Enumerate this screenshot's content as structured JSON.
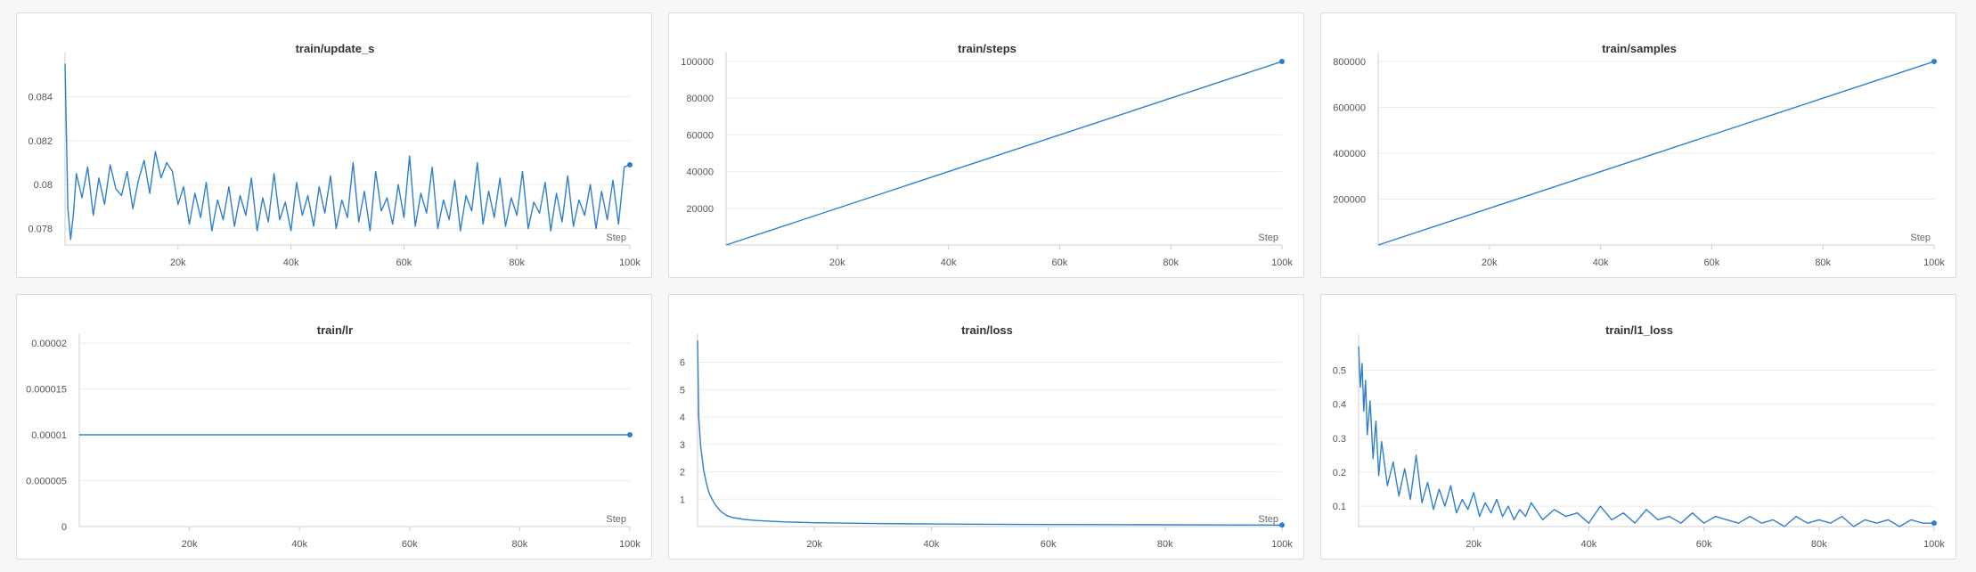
{
  "colors": {
    "line": "#2f7fcb",
    "grid": "#ebebeb",
    "axis": "#cfcfcf",
    "panel_bg": "#ffffff",
    "page_bg": "#f7f7f7"
  },
  "chart_data": [
    {
      "id": "update_s",
      "type": "line",
      "title": "train/update_s",
      "xlabel": "Step",
      "xlim": [
        0,
        100000
      ],
      "ylim": [
        0.07725,
        0.0856
      ],
      "xticks": [
        20000,
        40000,
        60000,
        80000,
        100000
      ],
      "xtick_labels": [
        "20k",
        "40k",
        "60k",
        "80k",
        "100k"
      ],
      "yticks": [
        0.078,
        0.08,
        0.082,
        0.084
      ],
      "ytick_labels": [
        "0.078",
        "0.08",
        "0.082",
        "0.084"
      ],
      "last_point_marker": true,
      "series": [
        {
          "x": [
            0,
            500,
            1000,
            1500,
            2000,
            3000,
            4000,
            5000,
            6000,
            7000,
            8000,
            9000,
            10000,
            11000,
            12000,
            13000,
            14000,
            15000,
            16000,
            17000,
            18000,
            19000,
            20000,
            21000,
            22000,
            23000,
            24000,
            25000,
            26000,
            27000,
            28000,
            29000,
            30000,
            31000,
            32000,
            33000,
            34000,
            35000,
            36000,
            37000,
            38000,
            39000,
            40000,
            41000,
            42000,
            43000,
            44000,
            45000,
            46000,
            47000,
            48000,
            49000,
            50000,
            51000,
            52000,
            53000,
            54000,
            55000,
            56000,
            57000,
            58000,
            59000,
            60000,
            61000,
            62000,
            63000,
            64000,
            65000,
            66000,
            67000,
            68000,
            69000,
            70000,
            71000,
            72000,
            73000,
            74000,
            75000,
            76000,
            77000,
            78000,
            79000,
            80000,
            81000,
            82000,
            83000,
            84000,
            85000,
            86000,
            87000,
            88000,
            89000,
            90000,
            91000,
            92000,
            93000,
            94000,
            95000,
            96000,
            97000,
            98000,
            99000,
            100000
          ],
          "y": [
            0.0855,
            0.0789,
            0.0775,
            0.0787,
            0.0805,
            0.0794,
            0.0808,
            0.0786,
            0.0803,
            0.0791,
            0.0809,
            0.0798,
            0.0795,
            0.0806,
            0.0789,
            0.0802,
            0.0811,
            0.0796,
            0.0815,
            0.0803,
            0.081,
            0.0806,
            0.0791,
            0.0799,
            0.0782,
            0.0796,
            0.0785,
            0.0801,
            0.0779,
            0.0793,
            0.0784,
            0.0799,
            0.0781,
            0.0795,
            0.0786,
            0.0803,
            0.0779,
            0.0794,
            0.0783,
            0.0805,
            0.0784,
            0.0792,
            0.0779,
            0.0801,
            0.0786,
            0.0795,
            0.0781,
            0.0799,
            0.0787,
            0.0804,
            0.078,
            0.0793,
            0.0785,
            0.081,
            0.0783,
            0.0797,
            0.0779,
            0.0806,
            0.0788,
            0.0794,
            0.0782,
            0.08,
            0.0785,
            0.0813,
            0.0781,
            0.0796,
            0.0787,
            0.0808,
            0.078,
            0.0793,
            0.0784,
            0.0802,
            0.0779,
            0.0795,
            0.0788,
            0.081,
            0.0782,
            0.0797,
            0.0785,
            0.0803,
            0.0781,
            0.0794,
            0.0786,
            0.0806,
            0.078,
            0.0792,
            0.0787,
            0.0801,
            0.0779,
            0.0796,
            0.0783,
            0.0804,
            0.0781,
            0.0793,
            0.0786,
            0.08,
            0.078,
            0.0797,
            0.0784,
            0.0802,
            0.0782,
            0.0808,
            0.0809
          ]
        }
      ]
    },
    {
      "id": "steps",
      "type": "line",
      "title": "train/steps",
      "xlabel": "Step",
      "xlim": [
        0,
        100000
      ],
      "ylim": [
        0,
        100000
      ],
      "xticks": [
        20000,
        40000,
        60000,
        80000,
        100000
      ],
      "xtick_labels": [
        "20k",
        "40k",
        "60k",
        "80k",
        "100k"
      ],
      "yticks": [
        20000,
        40000,
        60000,
        80000,
        100000
      ],
      "ytick_labels": [
        "20000",
        "40000",
        "60000",
        "80000",
        "100000"
      ],
      "last_point_marker": true,
      "series": [
        {
          "x": [
            0,
            100000
          ],
          "y": [
            0,
            100000
          ]
        }
      ]
    },
    {
      "id": "samples",
      "type": "line",
      "title": "train/samples",
      "xlabel": "Step",
      "xlim": [
        0,
        100000
      ],
      "ylim": [
        0,
        800000
      ],
      "xticks": [
        20000,
        40000,
        60000,
        80000,
        100000
      ],
      "xtick_labels": [
        "20k",
        "40k",
        "60k",
        "80k",
        "100k"
      ],
      "yticks": [
        200000,
        400000,
        600000,
        800000
      ],
      "ytick_labels": [
        "200000",
        "400000",
        "600000",
        "800000"
      ],
      "last_point_marker": true,
      "series": [
        {
          "x": [
            0,
            100000
          ],
          "y": [
            0,
            800000
          ]
        }
      ]
    },
    {
      "id": "lr",
      "type": "line",
      "title": "train/lr",
      "xlabel": "Step",
      "xlim": [
        0,
        100000
      ],
      "ylim": [
        0,
        2e-05
      ],
      "xticks": [
        20000,
        40000,
        60000,
        80000,
        100000
      ],
      "xtick_labels": [
        "20k",
        "40k",
        "60k",
        "80k",
        "100k"
      ],
      "yticks": [
        0,
        5e-06,
        1e-05,
        1.5e-05,
        2e-05
      ],
      "ytick_labels": [
        "0",
        "0.000005",
        "0.00001",
        "0.000015",
        "0.00002"
      ],
      "last_point_marker": true,
      "series": [
        {
          "x": [
            0,
            100000
          ],
          "y": [
            1e-05,
            1e-05
          ]
        }
      ]
    },
    {
      "id": "loss",
      "type": "line",
      "title": "train/loss",
      "xlabel": "Step",
      "xlim": [
        0,
        100000
      ],
      "ylim": [
        0,
        6.7
      ],
      "xticks": [
        20000,
        40000,
        60000,
        80000,
        100000
      ],
      "xtick_labels": [
        "20k",
        "40k",
        "60k",
        "80k",
        "100k"
      ],
      "yticks": [
        1,
        2,
        3,
        4,
        5,
        6
      ],
      "ytick_labels": [
        "1",
        "2",
        "3",
        "4",
        "5",
        "6"
      ],
      "last_point_marker": true,
      "series": [
        {
          "x": [
            0,
            200,
            500,
            1000,
            1500,
            2000,
            3000,
            4000,
            5000,
            6000,
            8000,
            10000,
            15000,
            20000,
            30000,
            40000,
            50000,
            60000,
            70000,
            80000,
            90000,
            100000
          ],
          "y": [
            6.8,
            4.0,
            3.0,
            2.1,
            1.6,
            1.2,
            0.8,
            0.55,
            0.4,
            0.33,
            0.26,
            0.22,
            0.17,
            0.14,
            0.11,
            0.095,
            0.085,
            0.075,
            0.07,
            0.065,
            0.06,
            0.055
          ]
        }
      ]
    },
    {
      "id": "l1_loss",
      "type": "line",
      "title": "train/l1_loss",
      "xlabel": "",
      "xlim": [
        0,
        100000
      ],
      "ylim": [
        0.04,
        0.58
      ],
      "xticks": [
        20000,
        40000,
        60000,
        80000,
        100000
      ],
      "xtick_labels": [
        "20k",
        "40k",
        "60k",
        "80k",
        "100k"
      ],
      "yticks": [
        0.1,
        0.2,
        0.3,
        0.4,
        0.5
      ],
      "ytick_labels": [
        "0.1",
        "0.2",
        "0.3",
        "0.4",
        "0.5"
      ],
      "last_point_marker": true,
      "series": [
        {
          "x": [
            0,
            300,
            600,
            900,
            1200,
            1500,
            2000,
            2500,
            3000,
            3500,
            4000,
            5000,
            6000,
            7000,
            8000,
            9000,
            10000,
            11000,
            12000,
            13000,
            14000,
            15000,
            16000,
            17000,
            18000,
            19000,
            20000,
            21000,
            22000,
            23000,
            24000,
            25000,
            26000,
            27000,
            28000,
            29000,
            30000,
            32000,
            34000,
            36000,
            38000,
            40000,
            42000,
            44000,
            46000,
            48000,
            50000,
            52000,
            54000,
            56000,
            58000,
            60000,
            62000,
            64000,
            66000,
            68000,
            70000,
            72000,
            74000,
            76000,
            78000,
            80000,
            82000,
            84000,
            86000,
            88000,
            90000,
            92000,
            94000,
            96000,
            98000,
            100000
          ],
          "y": [
            0.57,
            0.45,
            0.52,
            0.38,
            0.47,
            0.31,
            0.41,
            0.24,
            0.35,
            0.19,
            0.29,
            0.16,
            0.23,
            0.13,
            0.21,
            0.12,
            0.25,
            0.11,
            0.17,
            0.09,
            0.15,
            0.1,
            0.16,
            0.08,
            0.12,
            0.09,
            0.14,
            0.07,
            0.11,
            0.08,
            0.12,
            0.07,
            0.1,
            0.06,
            0.09,
            0.07,
            0.11,
            0.06,
            0.09,
            0.07,
            0.08,
            0.05,
            0.1,
            0.06,
            0.08,
            0.05,
            0.09,
            0.06,
            0.07,
            0.05,
            0.08,
            0.05,
            0.07,
            0.06,
            0.05,
            0.07,
            0.05,
            0.06,
            0.04,
            0.07,
            0.05,
            0.06,
            0.05,
            0.07,
            0.04,
            0.06,
            0.05,
            0.06,
            0.04,
            0.06,
            0.05,
            0.05
          ]
        }
      ]
    }
  ]
}
